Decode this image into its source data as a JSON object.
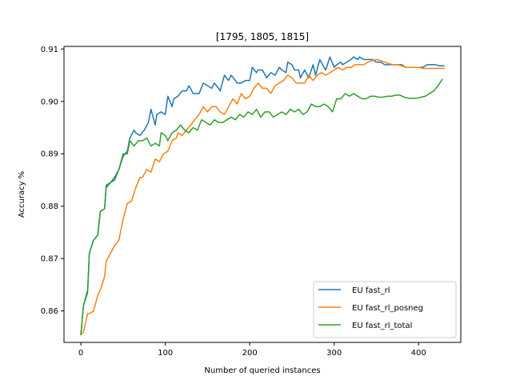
{
  "chart_data": {
    "type": "line",
    "title": "[1795, 1805, 1815]",
    "xlabel": "Number of queried instances",
    "ylabel": "Accuracy %",
    "xlim": [
      -20,
      450
    ],
    "ylim": [
      0.854,
      0.9105
    ],
    "xticks": [
      0,
      100,
      200,
      300,
      400
    ],
    "yticks": [
      0.86,
      0.87,
      0.88,
      0.89,
      0.9,
      0.91
    ],
    "ytick_labels": [
      "0.86",
      "0.87",
      "0.88",
      "0.89",
      "0.90",
      "0.91"
    ],
    "grid": false,
    "legend_position": "lower-right",
    "series": [
      {
        "name": "EU fast_rl",
        "color": "#1f77b4",
        "points": [
          [
            0,
            0.8555
          ],
          [
            3,
            0.861
          ],
          [
            8,
            0.864
          ],
          [
            10,
            0.871
          ],
          [
            15,
            0.8735
          ],
          [
            20,
            0.8745
          ],
          [
            23,
            0.879
          ],
          [
            28,
            0.8795
          ],
          [
            30,
            0.884
          ],
          [
            35,
            0.8845
          ],
          [
            40,
            0.8855
          ],
          [
            45,
            0.887
          ],
          [
            50,
            0.8895
          ],
          [
            55,
            0.8905
          ],
          [
            58,
            0.893
          ],
          [
            63,
            0.8945
          ],
          [
            65,
            0.894
          ],
          [
            70,
            0.8935
          ],
          [
            75,
            0.8945
          ],
          [
            80,
            0.896
          ],
          [
            83,
            0.8985
          ],
          [
            88,
            0.8955
          ],
          [
            90,
            0.8975
          ],
          [
            95,
            0.898
          ],
          [
            100,
            0.8975
          ],
          [
            103,
            0.901
          ],
          [
            108,
            0.899
          ],
          [
            110,
            0.9005
          ],
          [
            115,
            0.901
          ],
          [
            120,
            0.902
          ],
          [
            125,
            0.902
          ],
          [
            128,
            0.903
          ],
          [
            133,
            0.9015
          ],
          [
            135,
            0.9015
          ],
          [
            140,
            0.9015
          ],
          [
            145,
            0.9035
          ],
          [
            150,
            0.903
          ],
          [
            155,
            0.9025
          ],
          [
            158,
            0.9035
          ],
          [
            163,
            0.9025
          ],
          [
            165,
            0.902
          ],
          [
            170,
            0.905
          ],
          [
            175,
            0.904
          ],
          [
            178,
            0.905
          ],
          [
            183,
            0.904
          ],
          [
            185,
            0.9035
          ],
          [
            190,
            0.9035
          ],
          [
            195,
            0.904
          ],
          [
            200,
            0.904
          ],
          [
            203,
            0.9065
          ],
          [
            208,
            0.9055
          ],
          [
            210,
            0.906
          ],
          [
            215,
            0.906
          ],
          [
            220,
            0.9045
          ],
          [
            225,
            0.9055
          ],
          [
            230,
            0.905
          ],
          [
            235,
            0.9065
          ],
          [
            238,
            0.906
          ],
          [
            243,
            0.9055
          ],
          [
            245,
            0.9075
          ],
          [
            250,
            0.907
          ],
          [
            253,
            0.906
          ],
          [
            258,
            0.906
          ],
          [
            260,
            0.9045
          ],
          [
            265,
            0.906
          ],
          [
            270,
            0.9045
          ],
          [
            275,
            0.907
          ],
          [
            278,
            0.905
          ],
          [
            283,
            0.908
          ],
          [
            288,
            0.9065
          ],
          [
            290,
            0.906
          ],
          [
            295,
            0.9085
          ],
          [
            300,
            0.9065
          ],
          [
            303,
            0.907
          ],
          [
            308,
            0.9075
          ],
          [
            310,
            0.907
          ],
          [
            315,
            0.9075
          ],
          [
            320,
            0.908
          ],
          [
            323,
            0.9085
          ],
          [
            328,
            0.908
          ],
          [
            330,
            0.9085
          ],
          [
            335,
            0.908
          ],
          [
            340,
            0.908
          ],
          [
            345,
            0.908
          ],
          [
            350,
            0.9075
          ],
          [
            355,
            0.9075
          ],
          [
            360,
            0.907
          ],
          [
            365,
            0.907
          ],
          [
            370,
            0.907
          ],
          [
            375,
            0.907
          ],
          [
            380,
            0.907
          ],
          [
            385,
            0.9065
          ],
          [
            390,
            0.9065
          ],
          [
            395,
            0.9065
          ],
          [
            400,
            0.9065
          ],
          [
            405,
            0.9065
          ],
          [
            410,
            0.907
          ],
          [
            415,
            0.907
          ],
          [
            420,
            0.907
          ],
          [
            425,
            0.9068
          ],
          [
            430,
            0.9068
          ]
        ]
      },
      {
        "name": "EU fast_rl_posneg",
        "color": "#ff7f0e",
        "points": [
          [
            0,
            0.8555
          ],
          [
            3,
            0.856
          ],
          [
            8,
            0.8595
          ],
          [
            10,
            0.8595
          ],
          [
            15,
            0.86
          ],
          [
            20,
            0.863
          ],
          [
            23,
            0.864
          ],
          [
            28,
            0.8665
          ],
          [
            30,
            0.8695
          ],
          [
            35,
            0.871
          ],
          [
            40,
            0.8725
          ],
          [
            45,
            0.8735
          ],
          [
            50,
            0.8775
          ],
          [
            55,
            0.8805
          ],
          [
            60,
            0.881
          ],
          [
            65,
            0.8835
          ],
          [
            70,
            0.8855
          ],
          [
            73,
            0.8855
          ],
          [
            78,
            0.887
          ],
          [
            83,
            0.8865
          ],
          [
            88,
            0.889
          ],
          [
            93,
            0.8885
          ],
          [
            98,
            0.89
          ],
          [
            103,
            0.8905
          ],
          [
            108,
            0.8925
          ],
          [
            113,
            0.893
          ],
          [
            115,
            0.894
          ],
          [
            120,
            0.8935
          ],
          [
            125,
            0.8945
          ],
          [
            130,
            0.8955
          ],
          [
            135,
            0.8965
          ],
          [
            140,
            0.8975
          ],
          [
            145,
            0.899
          ],
          [
            150,
            0.898
          ],
          [
            155,
            0.899
          ],
          [
            160,
            0.899
          ],
          [
            165,
            0.898
          ],
          [
            170,
            0.8975
          ],
          [
            175,
            0.899
          ],
          [
            180,
            0.9005
          ],
          [
            185,
            0.8995
          ],
          [
            190,
            0.9015
          ],
          [
            195,
            0.9005
          ],
          [
            200,
            0.901
          ],
          [
            205,
            0.9025
          ],
          [
            210,
            0.9035
          ],
          [
            215,
            0.9025
          ],
          [
            220,
            0.9025
          ],
          [
            225,
            0.9015
          ],
          [
            230,
            0.903
          ],
          [
            235,
            0.9035
          ],
          [
            240,
            0.904
          ],
          [
            245,
            0.905
          ],
          [
            250,
            0.9045
          ],
          [
            255,
            0.9035
          ],
          [
            260,
            0.9035
          ],
          [
            265,
            0.9035
          ],
          [
            270,
            0.905
          ],
          [
            275,
            0.904
          ],
          [
            280,
            0.905
          ],
          [
            285,
            0.9055
          ],
          [
            290,
            0.905
          ],
          [
            295,
            0.9055
          ],
          [
            300,
            0.906
          ],
          [
            305,
            0.9065
          ],
          [
            310,
            0.906
          ],
          [
            315,
            0.9065
          ],
          [
            320,
            0.9065
          ],
          [
            325,
            0.907
          ],
          [
            330,
            0.907
          ],
          [
            335,
            0.907
          ],
          [
            340,
            0.9075
          ],
          [
            345,
            0.9078
          ],
          [
            350,
            0.908
          ],
          [
            355,
            0.9078
          ],
          [
            360,
            0.9075
          ],
          [
            365,
            0.9072
          ],
          [
            370,
            0.907
          ],
          [
            375,
            0.907
          ],
          [
            380,
            0.9068
          ],
          [
            385,
            0.9065
          ],
          [
            390,
            0.9065
          ],
          [
            395,
            0.9065
          ],
          [
            400,
            0.9065
          ],
          [
            405,
            0.9063
          ],
          [
            410,
            0.9063
          ],
          [
            415,
            0.9063
          ],
          [
            420,
            0.9063
          ],
          [
            425,
            0.9063
          ],
          [
            430,
            0.9063
          ]
        ]
      },
      {
        "name": "EU fast_rl_total",
        "color": "#2ca02c",
        "points": [
          [
            0,
            0.8555
          ],
          [
            3,
            0.861
          ],
          [
            8,
            0.8635
          ],
          [
            10,
            0.871
          ],
          [
            15,
            0.8735
          ],
          [
            20,
            0.8745
          ],
          [
            23,
            0.879
          ],
          [
            28,
            0.8795
          ],
          [
            30,
            0.8835
          ],
          [
            35,
            0.8845
          ],
          [
            40,
            0.885
          ],
          [
            45,
            0.887
          ],
          [
            50,
            0.89
          ],
          [
            55,
            0.89
          ],
          [
            58,
            0.8925
          ],
          [
            63,
            0.8915
          ],
          [
            68,
            0.8925
          ],
          [
            73,
            0.8925
          ],
          [
            78,
            0.893
          ],
          [
            83,
            0.8915
          ],
          [
            88,
            0.892
          ],
          [
            93,
            0.8915
          ],
          [
            95,
            0.894
          ],
          [
            100,
            0.8935
          ],
          [
            103,
            0.8925
          ],
          [
            108,
            0.894
          ],
          [
            113,
            0.8945
          ],
          [
            118,
            0.8955
          ],
          [
            123,
            0.8945
          ],
          [
            128,
            0.894
          ],
          [
            130,
            0.8945
          ],
          [
            133,
            0.895
          ],
          [
            138,
            0.8945
          ],
          [
            143,
            0.8965
          ],
          [
            148,
            0.896
          ],
          [
            153,
            0.8955
          ],
          [
            158,
            0.8965
          ],
          [
            163,
            0.896
          ],
          [
            168,
            0.896
          ],
          [
            173,
            0.8965
          ],
          [
            178,
            0.897
          ],
          [
            183,
            0.8965
          ],
          [
            188,
            0.8975
          ],
          [
            193,
            0.897
          ],
          [
            198,
            0.898
          ],
          [
            203,
            0.8975
          ],
          [
            208,
            0.8985
          ],
          [
            213,
            0.897
          ],
          [
            218,
            0.898
          ],
          [
            223,
            0.898
          ],
          [
            228,
            0.897
          ],
          [
            233,
            0.8975
          ],
          [
            238,
            0.898
          ],
          [
            243,
            0.8975
          ],
          [
            248,
            0.8985
          ],
          [
            253,
            0.898
          ],
          [
            258,
            0.8985
          ],
          [
            263,
            0.8975
          ],
          [
            268,
            0.898
          ],
          [
            273,
            0.8995
          ],
          [
            278,
            0.899
          ],
          [
            283,
            0.899
          ],
          [
            288,
            0.8995
          ],
          [
            293,
            0.899
          ],
          [
            298,
            0.898
          ],
          [
            303,
            0.9005
          ],
          [
            308,
            0.9005
          ],
          [
            313,
            0.9015
          ],
          [
            318,
            0.901
          ],
          [
            323,
            0.9015
          ],
          [
            328,
            0.901
          ],
          [
            333,
            0.9005
          ],
          [
            338,
            0.9005
          ],
          [
            343,
            0.901
          ],
          [
            348,
            0.901
          ],
          [
            353,
            0.9008
          ],
          [
            358,
            0.9008
          ],
          [
            363,
            0.901
          ],
          [
            368,
            0.901
          ],
          [
            373,
            0.9012
          ],
          [
            378,
            0.9012
          ],
          [
            383,
            0.9008
          ],
          [
            388,
            0.9006
          ],
          [
            393,
            0.9006
          ],
          [
            398,
            0.9006
          ],
          [
            403,
            0.9008
          ],
          [
            408,
            0.901
          ],
          [
            413,
            0.9015
          ],
          [
            418,
            0.902
          ],
          [
            423,
            0.903
          ],
          [
            428,
            0.9042
          ]
        ]
      }
    ]
  }
}
